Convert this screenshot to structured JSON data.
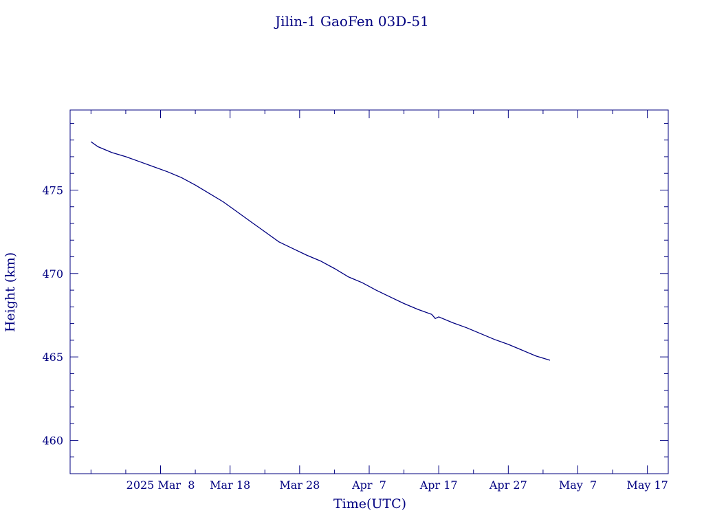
{
  "chart_data": {
    "type": "line",
    "title": "Jilin-1 GaoFen 03D-51",
    "xlabel": "Time(UTC)",
    "ylabel": "Height (km)",
    "x_is_date": true,
    "xlim": [
      "2025-02-23",
      "2025-05-20"
    ],
    "ylim": [
      458.0,
      479.8
    ],
    "xticks": [
      {
        "date": "2025-03-08",
        "label": "2025 Mar  8"
      },
      {
        "date": "2025-03-18",
        "label": "Mar 18"
      },
      {
        "date": "2025-03-28",
        "label": "Mar 28"
      },
      {
        "date": "2025-04-07",
        "label": "Apr  7"
      },
      {
        "date": "2025-04-17",
        "label": "Apr 17"
      },
      {
        "date": "2025-04-27",
        "label": "Apr 27"
      },
      {
        "date": "2025-05-07",
        "label": "May  7"
      },
      {
        "date": "2025-05-17",
        "label": "May 17"
      }
    ],
    "yticks": [
      460,
      465,
      470,
      475
    ],
    "grid": false,
    "series": [
      {
        "points": [
          {
            "x": "2025-02-26",
            "y": 477.9
          },
          {
            "x": "2025-02-27",
            "y": 477.6
          },
          {
            "x": "2025-03-01",
            "y": 477.25
          },
          {
            "x": "2025-03-03",
            "y": 477.0
          },
          {
            "x": "2025-03-05",
            "y": 476.7
          },
          {
            "x": "2025-03-07",
            "y": 476.4
          },
          {
            "x": "2025-03-09",
            "y": 476.1
          },
          {
            "x": "2025-03-11",
            "y": 475.75
          },
          {
            "x": "2025-03-13",
            "y": 475.3
          },
          {
            "x": "2025-03-15",
            "y": 474.8
          },
          {
            "x": "2025-03-17",
            "y": 474.3
          },
          {
            "x": "2025-03-19",
            "y": 473.7
          },
          {
            "x": "2025-03-21",
            "y": 473.1
          },
          {
            "x": "2025-03-23",
            "y": 472.5
          },
          {
            "x": "2025-03-25",
            "y": 471.9
          },
          {
            "x": "2025-03-27",
            "y": 471.5
          },
          {
            "x": "2025-03-29",
            "y": 471.1
          },
          {
            "x": "2025-03-31",
            "y": 470.75
          },
          {
            "x": "2025-04-02",
            "y": 470.3
          },
          {
            "x": "2025-04-04",
            "y": 469.8
          },
          {
            "x": "2025-04-06",
            "y": 469.45
          },
          {
            "x": "2025-04-08",
            "y": 469.0
          },
          {
            "x": "2025-04-10",
            "y": 468.6
          },
          {
            "x": "2025-04-12",
            "y": 468.2
          },
          {
            "x": "2025-04-14",
            "y": 467.85
          },
          {
            "x": "2025-04-16",
            "y": 467.55
          },
          {
            "x": "2025-04-16T12:00",
            "y": 467.3
          },
          {
            "x": "2025-04-17",
            "y": 467.4
          },
          {
            "x": "2025-04-19",
            "y": 467.05
          },
          {
            "x": "2025-04-21",
            "y": 466.75
          },
          {
            "x": "2025-04-23",
            "y": 466.4
          },
          {
            "x": "2025-04-25",
            "y": 466.05
          },
          {
            "x": "2025-04-27",
            "y": 465.75
          },
          {
            "x": "2025-04-29",
            "y": 465.4
          },
          {
            "x": "2025-05-01",
            "y": 465.05
          },
          {
            "x": "2025-05-03",
            "y": 464.8
          }
        ]
      }
    ],
    "color": "#000080"
  }
}
